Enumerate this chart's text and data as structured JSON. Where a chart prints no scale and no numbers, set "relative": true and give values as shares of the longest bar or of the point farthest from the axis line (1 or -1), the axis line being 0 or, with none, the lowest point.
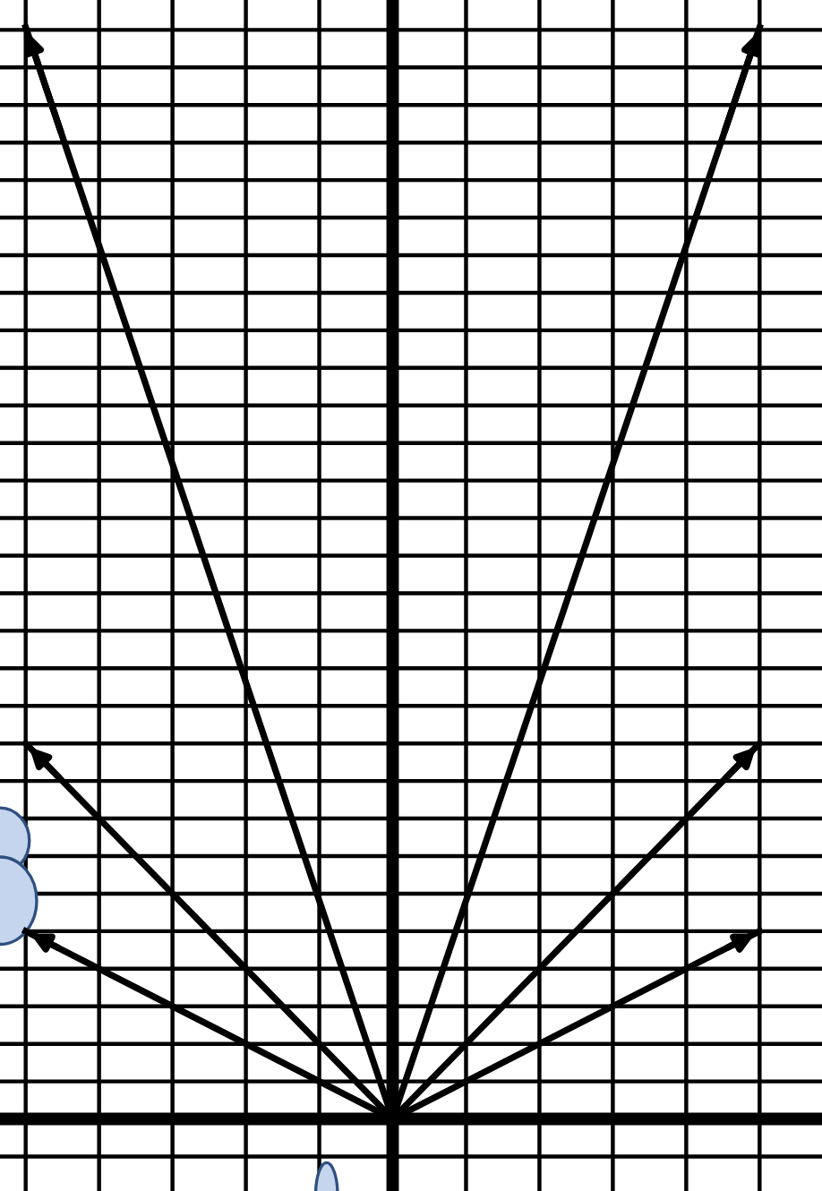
{
  "chart_data": {
    "type": "line",
    "relative": true,
    "categories": [
      null,
      null,
      null
    ],
    "series": [
      {
        "color": "#000000",
        "values": [
          1,
          0,
          1
        ]
      },
      {
        "color": "#000000",
        "values": [
          0.344,
          0,
          0.344
        ]
      },
      {
        "color": "#000000",
        "values": [
          0.172,
          0,
          0.172
        ]
      }
    ],
    "grid": true,
    "marker": "none",
    "line_style": "solid"
  }
}
